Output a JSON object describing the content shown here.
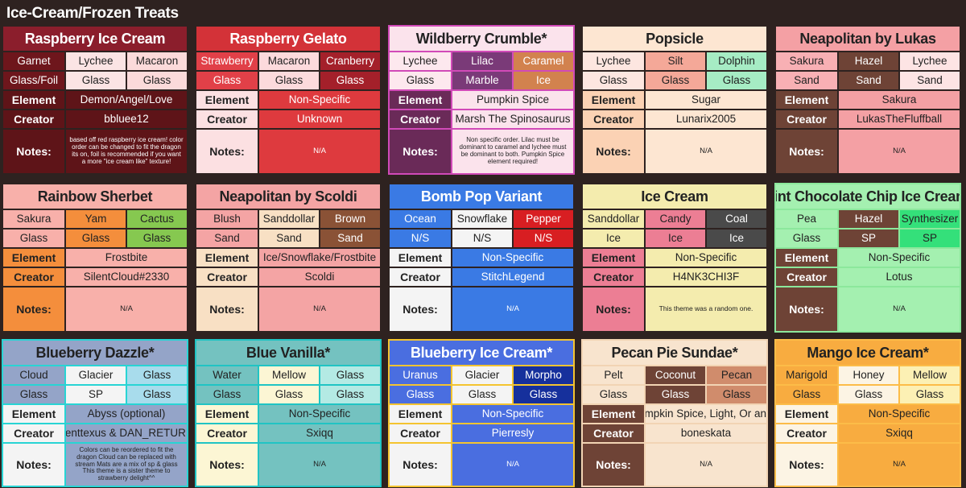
{
  "page_title": "Ice-Cream/Frozen Treats",
  "labels": {
    "element": "Element",
    "creator": "Creator",
    "notes": "Notes:"
  },
  "cards": [
    {
      "title": "Raspberry Ice Cream",
      "colors": {
        "title_bg": "#8b1e2c",
        "title_fg": "#ffffff",
        "label_bg": "#5e1418",
        "label_fg": "#ffffff",
        "value_bg": "#5e1418",
        "value_fg": "#ffffff",
        "border": "transparent"
      },
      "row1": [
        {
          "t": "Garnet",
          "bg": "#6e161c",
          "fg": "#ffffff"
        },
        {
          "t": "Lychee",
          "bg": "#fbe4e4",
          "fg": "#222222"
        },
        {
          "t": "Macaron",
          "bg": "#fbdada",
          "fg": "#222222"
        }
      ],
      "row2": [
        {
          "t": "Glass/Foil",
          "bg": "#6e161c",
          "fg": "#ffffff"
        },
        {
          "t": "Glass",
          "bg": "#fbe4e4",
          "fg": "#222222"
        },
        {
          "t": "Glass",
          "bg": "#fbdada",
          "fg": "#222222"
        }
      ],
      "element": "Demon/Angel/Love",
      "creator": "bbluee12",
      "notes": "based off red raspberry ice cream! color order can be changed to fit the dragon its on, foil is recommended if you want a more \"ice cream like\" texture!"
    },
    {
      "title": "Raspberry Gelato",
      "colors": {
        "title_bg": "#d33238",
        "title_fg": "#ffffff",
        "label_bg": "#fce0e2",
        "label_fg": "#222222",
        "value_bg": "#de3a3e",
        "value_fg": "#ffffff",
        "border": "transparent"
      },
      "row1": [
        {
          "t": "Strawberry",
          "bg": "#e14048",
          "fg": "#ffffff"
        },
        {
          "t": "Macaron",
          "bg": "#fcdadc",
          "fg": "#222222"
        },
        {
          "t": "Cranberry",
          "bg": "#a4202a",
          "fg": "#ffffff"
        }
      ],
      "row2": [
        {
          "t": "Glass",
          "bg": "#e14048",
          "fg": "#ffffff"
        },
        {
          "t": "Glass",
          "bg": "#fcdadc",
          "fg": "#222222"
        },
        {
          "t": "Glass",
          "bg": "#a4202a",
          "fg": "#ffffff"
        }
      ],
      "element": "Non-Specific",
      "creator": "Unknown",
      "notes": "N/A"
    },
    {
      "title": "Wildberry Crumble*",
      "colors": {
        "title_bg": "#fbe3ec",
        "title_fg": "#222222",
        "label_bg": "#6a2a58",
        "label_fg": "#ffffff",
        "value_bg": "#fbe3ec",
        "value_fg": "#222222",
        "border": "#d14ab8"
      },
      "row1": [
        {
          "t": "Lychee",
          "bg": "#fde8ee",
          "fg": "#222222"
        },
        {
          "t": "Lilac",
          "bg": "#7a3a78",
          "fg": "#ffffff"
        },
        {
          "t": "Caramel",
          "bg": "#d2824e",
          "fg": "#ffffff"
        }
      ],
      "row2": [
        {
          "t": "Glass",
          "bg": "#fde8ee",
          "fg": "#222222"
        },
        {
          "t": "Marble",
          "bg": "#7a3a78",
          "fg": "#ffffff"
        },
        {
          "t": "Ice",
          "bg": "#d2824e",
          "fg": "#ffffff"
        }
      ],
      "element": "Pumpkin Spice",
      "creator": "Marsh The Spinosaurus",
      "notes": "Non specific order. Lilac must be dominant to caramel and lychee must be dominant to both. Pumpkin Spice element required!"
    },
    {
      "title": "Popsicle",
      "colors": {
        "title_bg": "#fde6d2",
        "title_fg": "#222222",
        "label_bg": "#fbd2b4",
        "label_fg": "#222222",
        "value_bg": "#fde6d2",
        "value_fg": "#222222",
        "border": "transparent"
      },
      "row1": [
        {
          "t": "Lychee",
          "bg": "#fde6e0",
          "fg": "#222222"
        },
        {
          "t": "Silt",
          "bg": "#f4a898",
          "fg": "#222222"
        },
        {
          "t": "Dolphin",
          "bg": "#a6ecc4",
          "fg": "#222222"
        }
      ],
      "row2": [
        {
          "t": "Glass",
          "bg": "#fde6e0",
          "fg": "#222222"
        },
        {
          "t": "Glass",
          "bg": "#f4a898",
          "fg": "#222222"
        },
        {
          "t": "Glass",
          "bg": "#a6ecc4",
          "fg": "#222222"
        }
      ],
      "element": "Sugar",
      "creator": "Lunarix2005",
      "notes": "N/A"
    },
    {
      "title": "Neapolitan by Lukas",
      "colors": {
        "title_bg": "#f4a0a4",
        "title_fg": "#222222",
        "label_bg": "#6e4336",
        "label_fg": "#ffffff",
        "value_bg": "#f4a0a4",
        "value_fg": "#222222",
        "border": "transparent"
      },
      "row1": [
        {
          "t": "Sakura",
          "bg": "#f8b0b4",
          "fg": "#222222"
        },
        {
          "t": "Hazel",
          "bg": "#6e4336",
          "fg": "#ffffff"
        },
        {
          "t": "Lychee",
          "bg": "#fde4e4",
          "fg": "#222222"
        }
      ],
      "row2": [
        {
          "t": "Sand",
          "bg": "#f8b0b4",
          "fg": "#222222"
        },
        {
          "t": "Sand",
          "bg": "#6e4336",
          "fg": "#ffffff"
        },
        {
          "t": "Sand",
          "bg": "#fde4e4",
          "fg": "#222222"
        }
      ],
      "element": "Sakura",
      "creator": "LukasTheFluffball",
      "notes": "N/A"
    },
    {
      "title": "Rainbow Sherbet",
      "colors": {
        "title_bg": "#f8b0aa",
        "title_fg": "#222222",
        "label_bg": "#f48e3c",
        "label_fg": "#222222",
        "value_bg": "#f8b0aa",
        "value_fg": "#222222",
        "border": "transparent"
      },
      "row1": [
        {
          "t": "Sakura",
          "bg": "#f8b0aa",
          "fg": "#222222"
        },
        {
          "t": "Yam",
          "bg": "#f48e3c",
          "fg": "#222222"
        },
        {
          "t": "Cactus",
          "bg": "#86c850",
          "fg": "#222222"
        }
      ],
      "row2": [
        {
          "t": "Glass",
          "bg": "#f8b0aa",
          "fg": "#222222"
        },
        {
          "t": "Glass",
          "bg": "#f48e3c",
          "fg": "#222222"
        },
        {
          "t": "Glass",
          "bg": "#86c850",
          "fg": "#222222"
        }
      ],
      "element": "Frostbite",
      "creator": "SilentCloud#2330",
      "notes": "N/A"
    },
    {
      "title": "Neapolitan by Scoldi",
      "colors": {
        "title_bg": "#f4a4a4",
        "title_fg": "#222222",
        "label_bg": "#f8e0c4",
        "label_fg": "#222222",
        "value_bg": "#f4a4a4",
        "value_fg": "#222222",
        "border": "transparent"
      },
      "row1": [
        {
          "t": "Blush",
          "bg": "#f4a4a4",
          "fg": "#222222"
        },
        {
          "t": "Sanddollar",
          "bg": "#f8e0c4",
          "fg": "#222222"
        },
        {
          "t": "Brown",
          "bg": "#8a5236",
          "fg": "#ffffff"
        }
      ],
      "row2": [
        {
          "t": "Sand",
          "bg": "#f4a4a4",
          "fg": "#222222"
        },
        {
          "t": "Sand",
          "bg": "#f8e0c4",
          "fg": "#222222"
        },
        {
          "t": "Sand",
          "bg": "#8a5236",
          "fg": "#ffffff"
        }
      ],
      "element": "Ice/Snowflake/Frostbite",
      "creator": "Scoldi",
      "notes": "N/A"
    },
    {
      "title": "Bomb Pop Variant",
      "colors": {
        "title_bg": "#3a7ae4",
        "title_fg": "#ffffff",
        "label_bg": "#f4f4f4",
        "label_fg": "#222222",
        "value_bg": "#3a7ae4",
        "value_fg": "#ffffff",
        "border": "transparent"
      },
      "row1": [
        {
          "t": "Ocean",
          "bg": "#3a7ae4",
          "fg": "#ffffff"
        },
        {
          "t": "Snowflake",
          "bg": "#f4f4f4",
          "fg": "#222222"
        },
        {
          "t": "Pepper",
          "bg": "#d81e22",
          "fg": "#ffffff"
        }
      ],
      "row2": [
        {
          "t": "N/S",
          "bg": "#3a7ae4",
          "fg": "#ffffff"
        },
        {
          "t": "N/S",
          "bg": "#f4f4f4",
          "fg": "#222222"
        },
        {
          "t": "N/S",
          "bg": "#d81e22",
          "fg": "#ffffff"
        }
      ],
      "element": "Non-Specific",
      "creator": "StitchLegend",
      "notes": "N/A"
    },
    {
      "title": "Ice Cream",
      "colors": {
        "title_bg": "#f4ecae",
        "title_fg": "#222222",
        "label_bg": "#ec7e94",
        "label_fg": "#222222",
        "value_bg": "#f4ecae",
        "value_fg": "#222222",
        "border": "transparent"
      },
      "row1": [
        {
          "t": "Sanddollar",
          "bg": "#f4ecae",
          "fg": "#222222"
        },
        {
          "t": "Candy",
          "bg": "#ec7e94",
          "fg": "#222222"
        },
        {
          "t": "Coal",
          "bg": "#4a4a4a",
          "fg": "#ffffff"
        }
      ],
      "row2": [
        {
          "t": "Ice",
          "bg": "#f4ecae",
          "fg": "#222222"
        },
        {
          "t": "Ice",
          "bg": "#ec7e94",
          "fg": "#222222"
        },
        {
          "t": "Ice",
          "bg": "#4a4a4a",
          "fg": "#ffffff"
        }
      ],
      "element": "Non-Specific",
      "creator": "H4NK3CHI3F",
      "notes": "This theme was a random one."
    },
    {
      "title": "Mint Chocolate Chip Ice Cream*",
      "colors": {
        "title_bg": "#a4f0b0",
        "title_fg": "#222222",
        "label_bg": "#6e4336",
        "label_fg": "#ffffff",
        "value_bg": "#a4f0b0",
        "value_fg": "#222222",
        "border": "#8ce89c"
      },
      "row1": [
        {
          "t": "Pea",
          "bg": "#a4f0b0",
          "fg": "#222222"
        },
        {
          "t": "Hazel",
          "bg": "#6e4336",
          "fg": "#ffffff"
        },
        {
          "t": "Synthesizer",
          "bg": "#34e07a",
          "fg": "#222222"
        }
      ],
      "row2": [
        {
          "t": "Glass",
          "bg": "#a4f0b0",
          "fg": "#222222"
        },
        {
          "t": "SP",
          "bg": "#6e4336",
          "fg": "#ffffff"
        },
        {
          "t": "SP",
          "bg": "#34e07a",
          "fg": "#222222"
        }
      ],
      "element": "Non-Specific",
      "creator": "Lotus",
      "notes": "N/A"
    },
    {
      "title": "Blueberry Dazzle*",
      "colors": {
        "title_bg": "#94a4c8",
        "title_fg": "#222222",
        "label_bg": "#f4f4f4",
        "label_fg": "#222222",
        "value_bg": "#94a4c8",
        "value_fg": "#222222",
        "border": "#28d4d4"
      },
      "row1": [
        {
          "t": "Cloud",
          "bg": "#94a4c8",
          "fg": "#222222"
        },
        {
          "t": "Glacier",
          "bg": "#f4f4f4",
          "fg": "#222222"
        },
        {
          "t": "Glass",
          "bg": "#a8dcec",
          "fg": "#222222"
        }
      ],
      "row2": [
        {
          "t": "Glass",
          "bg": "#94a4c8",
          "fg": "#222222"
        },
        {
          "t": "SP",
          "bg": "#f4f4f4",
          "fg": "#222222"
        },
        {
          "t": "Glass",
          "bg": "#a8dcec",
          "fg": "#222222"
        }
      ],
      "element": "Abyss (optional)",
      "creator": "Agenttexus & DAN_RETURNS",
      "notes": "Colors can be reordered to fit the dragon Cloud can be replaced with stream Mats are a mix of sp & glass This theme is a sister theme to strawberry delight^^"
    },
    {
      "title": "Blue Vanilla*",
      "colors": {
        "title_bg": "#74c2c0",
        "title_fg": "#222222",
        "label_bg": "#fcf6d4",
        "label_fg": "#222222",
        "value_bg": "#74c2c0",
        "value_fg": "#222222",
        "border": "#20c4c4"
      },
      "row1": [
        {
          "t": "Water",
          "bg": "#74c2c0",
          "fg": "#222222"
        },
        {
          "t": "Mellow",
          "bg": "#fcf6d4",
          "fg": "#222222"
        },
        {
          "t": "Glass",
          "bg": "#b4eae4",
          "fg": "#222222"
        }
      ],
      "row2": [
        {
          "t": "Glass",
          "bg": "#74c2c0",
          "fg": "#222222"
        },
        {
          "t": "Glass",
          "bg": "#fcf6d4",
          "fg": "#222222"
        },
        {
          "t": "Glass",
          "bg": "#b4eae4",
          "fg": "#222222"
        }
      ],
      "element": "Non-Specific",
      "creator": "Sxiqq",
      "notes": "N/A"
    },
    {
      "title": "Blueberry Ice Cream*",
      "colors": {
        "title_bg": "#4a6ee0",
        "title_fg": "#ffffff",
        "label_bg": "#f4f4f4",
        "label_fg": "#222222",
        "value_bg": "#4a6ee0",
        "value_fg": "#ffffff",
        "border": "#f4c430"
      },
      "row1": [
        {
          "t": "Uranus",
          "bg": "#4a6ee0",
          "fg": "#ffffff"
        },
        {
          "t": "Glacier",
          "bg": "#f4f4f4",
          "fg": "#222222"
        },
        {
          "t": "Morpho",
          "bg": "#16309c",
          "fg": "#ffffff"
        }
      ],
      "row2": [
        {
          "t": "Glass",
          "bg": "#4a6ee0",
          "fg": "#ffffff"
        },
        {
          "t": "Glass",
          "bg": "#f4f4f4",
          "fg": "#222222"
        },
        {
          "t": "Glass",
          "bg": "#16309c",
          "fg": "#ffffff"
        }
      ],
      "element": "Non-Specific",
      "creator": "Pierresly",
      "notes": "N/A"
    },
    {
      "title": "Pecan Pie Sundae*",
      "colors": {
        "title_bg": "#f8e4ce",
        "title_fg": "#222222",
        "label_bg": "#6e4336",
        "label_fg": "#ffffff",
        "value_bg": "#f8e4ce",
        "value_fg": "#222222",
        "border": "#f2d4b4"
      },
      "row1": [
        {
          "t": "Pelt",
          "bg": "#f8e4ce",
          "fg": "#222222"
        },
        {
          "t": "Coconut",
          "bg": "#6e4336",
          "fg": "#ffffff"
        },
        {
          "t": "Pecan",
          "bg": "#d08c6c",
          "fg": "#222222"
        }
      ],
      "row2": [
        {
          "t": "Glass",
          "bg": "#f8e4ce",
          "fg": "#222222"
        },
        {
          "t": "Glass",
          "bg": "#6e4336",
          "fg": "#ffffff"
        },
        {
          "t": "Glass",
          "bg": "#d08c6c",
          "fg": "#222222"
        }
      ],
      "element": "Pumpkin Spice, Light, Or angel",
      "creator": "boneskata",
      "notes": "N/A"
    },
    {
      "title": "Mango Ice Cream*",
      "colors": {
        "title_bg": "#f8ac40",
        "title_fg": "#222222",
        "label_bg": "#fcf4e4",
        "label_fg": "#222222",
        "value_bg": "#f8ac40",
        "value_fg": "#222222",
        "border": "#fcbc48"
      },
      "row1": [
        {
          "t": "Marigold",
          "bg": "#f8ac40",
          "fg": "#222222"
        },
        {
          "t": "Honey",
          "bg": "#fcf4e4",
          "fg": "#222222"
        },
        {
          "t": "Mellow",
          "bg": "#fcf0b4",
          "fg": "#222222"
        }
      ],
      "row2": [
        {
          "t": "Glass",
          "bg": "#f8ac40",
          "fg": "#222222"
        },
        {
          "t": "Glass",
          "bg": "#fcf4e4",
          "fg": "#222222"
        },
        {
          "t": "Glass",
          "bg": "#fcf0b4",
          "fg": "#222222"
        }
      ],
      "element": "Non-Specific",
      "creator": "Sxiqq",
      "notes": "N/A"
    }
  ]
}
